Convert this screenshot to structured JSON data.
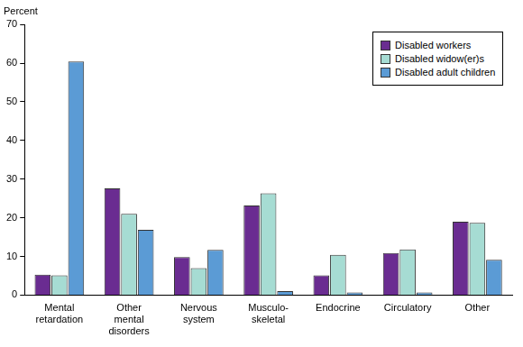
{
  "chart_data": {
    "type": "bar",
    "ylabel": "Percent",
    "categories": [
      "Mental retardation",
      "Other mental disorders",
      "Nervous system",
      "Musculo-skeletal",
      "Endocrine",
      "Circulatory",
      "Other"
    ],
    "series": [
      {
        "name": "Disabled workers",
        "color": "#6a2c91",
        "values": [
          5.3,
          27.6,
          9.8,
          23.2,
          5.1,
          10.9,
          19.0
        ]
      },
      {
        "name": "Disabled widow(er)s",
        "color": "#a6dcd3",
        "values": [
          5.1,
          21.0,
          7.0,
          26.3,
          10.4,
          11.8,
          18.7
        ]
      },
      {
        "name": "Disabled adult children",
        "color": "#5b9bd5",
        "values": [
          60.4,
          16.9,
          11.7,
          1.0,
          0.7,
          0.7,
          9.1
        ]
      }
    ],
    "ylim": [
      0,
      70
    ],
    "yticks": [
      0,
      10,
      20,
      30,
      40,
      50,
      60,
      70
    ],
    "grid": false,
    "legend": "upper right"
  }
}
